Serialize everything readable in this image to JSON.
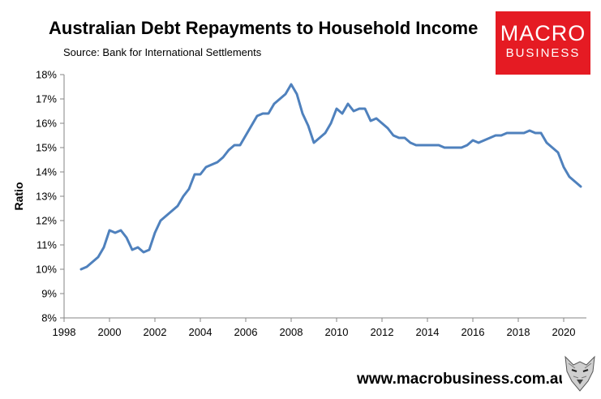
{
  "title": "Australian Debt Repayments to Household Income",
  "subtitle": "Source: Bank for International Settlements",
  "logo": {
    "line1": "MACRO",
    "line2": "BUSINESS"
  },
  "website": "www.macrobusiness.com.au",
  "colors": {
    "line": "#4f81bd",
    "logo_bg": "#e51b23"
  },
  "chart_data": {
    "type": "line",
    "title": "Australian Debt Repayments to Household Income",
    "xlabel": "",
    "ylabel": "Ratio",
    "xlim": [
      1998,
      2021
    ],
    "ylim": [
      8,
      18
    ],
    "xticks": [
      "1998",
      "2000",
      "2002",
      "2004",
      "2006",
      "2008",
      "2010",
      "2012",
      "2014",
      "2016",
      "2018",
      "2020"
    ],
    "yticks": [
      "8%",
      "9%",
      "10%",
      "11%",
      "12%",
      "13%",
      "14%",
      "15%",
      "16%",
      "17%",
      "18%"
    ],
    "grid": false,
    "series": [
      {
        "name": "",
        "x": [
          1998.75,
          1999.0,
          1999.25,
          1999.5,
          1999.75,
          2000.0,
          2000.25,
          2000.5,
          2000.75,
          2001.0,
          2001.25,
          2001.5,
          2001.75,
          2002.0,
          2002.25,
          2002.5,
          2002.75,
          2003.0,
          2003.25,
          2003.5,
          2003.75,
          2004.0,
          2004.25,
          2004.5,
          2004.75,
          2005.0,
          2005.25,
          2005.5,
          2005.75,
          2006.0,
          2006.25,
          2006.5,
          2006.75,
          2007.0,
          2007.25,
          2007.5,
          2007.75,
          2008.0,
          2008.25,
          2008.5,
          2008.75,
          2009.0,
          2009.25,
          2009.5,
          2009.75,
          2010.0,
          2010.25,
          2010.5,
          2010.75,
          2011.0,
          2011.25,
          2011.5,
          2011.75,
          2012.0,
          2012.25,
          2012.5,
          2012.75,
          2013.0,
          2013.25,
          2013.5,
          2013.75,
          2014.0,
          2014.25,
          2014.5,
          2014.75,
          2015.0,
          2015.25,
          2015.5,
          2015.75,
          2016.0,
          2016.25,
          2016.5,
          2016.75,
          2017.0,
          2017.25,
          2017.5,
          2017.75,
          2018.0,
          2018.25,
          2018.5,
          2018.75,
          2019.0,
          2019.25,
          2019.5,
          2019.75,
          2020.0,
          2020.25,
          2020.5,
          2020.75
        ],
        "y": [
          10.0,
          10.1,
          10.3,
          10.5,
          10.9,
          11.6,
          11.5,
          11.6,
          11.3,
          10.8,
          10.9,
          10.7,
          10.8,
          11.5,
          12.0,
          12.2,
          12.4,
          12.6,
          13.0,
          13.3,
          13.9,
          13.9,
          14.2,
          14.3,
          14.4,
          14.6,
          14.9,
          15.1,
          15.1,
          15.5,
          15.9,
          16.3,
          16.4,
          16.4,
          16.8,
          17.0,
          17.2,
          17.6,
          17.2,
          16.4,
          15.9,
          15.2,
          15.4,
          15.6,
          16.0,
          16.6,
          16.4,
          16.8,
          16.5,
          16.6,
          16.6,
          16.1,
          16.2,
          16.0,
          15.8,
          15.5,
          15.4,
          15.4,
          15.2,
          15.1,
          15.1,
          15.1,
          15.1,
          15.1,
          15.0,
          15.0,
          15.0,
          15.0,
          15.1,
          15.3,
          15.2,
          15.3,
          15.4,
          15.5,
          15.5,
          15.6,
          15.6,
          15.6,
          15.6,
          15.7,
          15.6,
          15.6,
          15.2,
          15.0,
          14.8,
          14.2,
          13.8,
          13.6,
          13.4
        ]
      }
    ]
  }
}
